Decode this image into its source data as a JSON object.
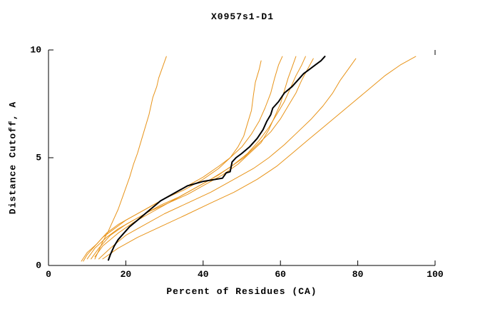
{
  "chart_data": {
    "type": "line",
    "title": "X0957s1-D1",
    "xlabel": "Percent of Residues (CA)",
    "ylabel": "Distance Cutoff, A",
    "xlim": [
      0,
      100
    ],
    "ylim": [
      0,
      10
    ],
    "xticks": [
      0,
      20,
      40,
      60,
      80,
      100
    ],
    "yticks": [
      0,
      5,
      10
    ],
    "grid": false,
    "colors": {
      "model_line": "#E8941A",
      "highlight_line": "#000000",
      "axis": "#000000",
      "background": "#FFFFFF"
    },
    "series": [
      {
        "color": "#E8941A",
        "width": 1,
        "points": [
          [
            12,
            0.3
          ],
          [
            13,
            0.7
          ],
          [
            14,
            1.1
          ],
          [
            15.5,
            1.6
          ],
          [
            16.5,
            2.0
          ],
          [
            18,
            2.6
          ],
          [
            19,
            3.1
          ],
          [
            20,
            3.6
          ],
          [
            21,
            4.1
          ],
          [
            22,
            4.7
          ],
          [
            23,
            5.2
          ],
          [
            24,
            5.8
          ],
          [
            25,
            6.4
          ],
          [
            26,
            7.0
          ],
          [
            26.5,
            7.4
          ],
          [
            27,
            7.8
          ],
          [
            28,
            8.3
          ],
          [
            28.5,
            8.7
          ],
          [
            29.5,
            9.2
          ],
          [
            30.5,
            9.7
          ]
        ]
      },
      {
        "color": "#E8941A",
        "width": 1,
        "points": [
          [
            9,
            0.2
          ],
          [
            10,
            0.5
          ],
          [
            12,
            0.9
          ],
          [
            14,
            1.3
          ],
          [
            17,
            1.7
          ],
          [
            20,
            2.1
          ],
          [
            24,
            2.5
          ],
          [
            28,
            2.9
          ],
          [
            32,
            3.3
          ],
          [
            36,
            3.7
          ],
          [
            40,
            4.1
          ],
          [
            44,
            4.6
          ],
          [
            47,
            5.0
          ],
          [
            49,
            5.5
          ],
          [
            50.5,
            6.0
          ],
          [
            51.5,
            6.6
          ],
          [
            52.5,
            7.2
          ],
          [
            53,
            7.9
          ],
          [
            53.5,
            8.5
          ],
          [
            54.5,
            9.1
          ],
          [
            55,
            9.5
          ]
        ]
      },
      {
        "color": "#E8941A",
        "width": 1,
        "points": [
          [
            10,
            0.3
          ],
          [
            12,
            0.8
          ],
          [
            15,
            1.3
          ],
          [
            18,
            1.7
          ],
          [
            22,
            2.1
          ],
          [
            26,
            2.5
          ],
          [
            31,
            2.9
          ],
          [
            36,
            3.3
          ],
          [
            41,
            3.8
          ],
          [
            45,
            4.2
          ],
          [
            49,
            4.7
          ],
          [
            52,
            5.2
          ],
          [
            55,
            5.7
          ],
          [
            57,
            6.3
          ],
          [
            58.5,
            6.9
          ],
          [
            60,
            7.5
          ],
          [
            61,
            8.1
          ],
          [
            62,
            8.7
          ],
          [
            63,
            9.2
          ],
          [
            64,
            9.7
          ]
        ]
      },
      {
        "color": "#E8941A",
        "width": 1,
        "points": [
          [
            11,
            0.3
          ],
          [
            13,
            0.8
          ],
          [
            16,
            1.4
          ],
          [
            20,
            1.9
          ],
          [
            24,
            2.3
          ],
          [
            29,
            2.8
          ],
          [
            34,
            3.2
          ],
          [
            39,
            3.7
          ],
          [
            44,
            4.2
          ],
          [
            48,
            4.7
          ],
          [
            51.5,
            5.2
          ],
          [
            54.5,
            5.8
          ],
          [
            57,
            6.4
          ],
          [
            59,
            7.0
          ],
          [
            61,
            7.6
          ],
          [
            62.5,
            8.2
          ],
          [
            64,
            8.8
          ],
          [
            65.5,
            9.3
          ],
          [
            66.5,
            9.7
          ]
        ]
      },
      {
        "color": "#E8941A",
        "width": 1,
        "points": [
          [
            12,
            0.4
          ],
          [
            14,
            0.9
          ],
          [
            18,
            1.5
          ],
          [
            22,
            2.0
          ],
          [
            27,
            2.5
          ],
          [
            32,
            3.0
          ],
          [
            37,
            3.5
          ],
          [
            42,
            4.0
          ],
          [
            46.5,
            4.5
          ],
          [
            50.5,
            5.0
          ],
          [
            54,
            5.6
          ],
          [
            57.5,
            6.2
          ],
          [
            60,
            6.8
          ],
          [
            62,
            7.4
          ],
          [
            64,
            8.0
          ],
          [
            65.5,
            8.6
          ],
          [
            67,
            9.1
          ],
          [
            68.5,
            9.6
          ]
        ]
      },
      {
        "color": "#E8941A",
        "width": 1,
        "points": [
          [
            8.5,
            0.2
          ],
          [
            10,
            0.6
          ],
          [
            12.5,
            1.0
          ],
          [
            15,
            1.5
          ],
          [
            18,
            1.9
          ],
          [
            22,
            2.3
          ],
          [
            26,
            2.7
          ],
          [
            30,
            3.1
          ],
          [
            35,
            3.5
          ],
          [
            40,
            4.0
          ],
          [
            44,
            4.5
          ],
          [
            47,
            5.0
          ],
          [
            50,
            5.5
          ],
          [
            52.5,
            6.1
          ],
          [
            54.5,
            6.7
          ],
          [
            56,
            7.3
          ],
          [
            57.5,
            8.0
          ],
          [
            58.5,
            8.7
          ],
          [
            59.5,
            9.3
          ],
          [
            60.5,
            9.7
          ]
        ]
      },
      {
        "color": "#E8941A",
        "width": 1,
        "points": [
          [
            13,
            0.3
          ],
          [
            16,
            0.8
          ],
          [
            20,
            1.4
          ],
          [
            25,
            1.9
          ],
          [
            30,
            2.4
          ],
          [
            36,
            2.9
          ],
          [
            42,
            3.4
          ],
          [
            48,
            4.0
          ],
          [
            53,
            4.5
          ],
          [
            57,
            5.0
          ],
          [
            61,
            5.6
          ],
          [
            64.5,
            6.2
          ],
          [
            68,
            6.8
          ],
          [
            71,
            7.4
          ],
          [
            73.5,
            8.0
          ],
          [
            75.5,
            8.6
          ],
          [
            77.5,
            9.1
          ],
          [
            79.5,
            9.6
          ]
        ]
      },
      {
        "color": "#E8941A",
        "width": 1,
        "points": [
          [
            14,
            0.3
          ],
          [
            18,
            0.8
          ],
          [
            23,
            1.3
          ],
          [
            29,
            1.8
          ],
          [
            35,
            2.3
          ],
          [
            42,
            2.9
          ],
          [
            48,
            3.4
          ],
          [
            54,
            4.0
          ],
          [
            59,
            4.6
          ],
          [
            63,
            5.2
          ],
          [
            67,
            5.8
          ],
          [
            71,
            6.4
          ],
          [
            75,
            7.0
          ],
          [
            79,
            7.6
          ],
          [
            83,
            8.2
          ],
          [
            87,
            8.8
          ],
          [
            91,
            9.3
          ],
          [
            95,
            9.7
          ]
        ]
      },
      {
        "color": "#000000",
        "width": 2,
        "points": [
          [
            15.5,
            0.25
          ],
          [
            16,
            0.5
          ],
          [
            17,
            0.9
          ],
          [
            18,
            1.2
          ],
          [
            19.5,
            1.5
          ],
          [
            21,
            1.8
          ],
          [
            23,
            2.1
          ],
          [
            25,
            2.4
          ],
          [
            27,
            2.7
          ],
          [
            29,
            3.0
          ],
          [
            31,
            3.2
          ],
          [
            34,
            3.5
          ],
          [
            36,
            3.7
          ],
          [
            40,
            3.9
          ],
          [
            45,
            4.05
          ],
          [
            46,
            4.3
          ],
          [
            47,
            4.35
          ],
          [
            47.5,
            4.8
          ],
          [
            48.5,
            5.0
          ],
          [
            50,
            5.2
          ],
          [
            52,
            5.5
          ],
          [
            54,
            5.9
          ],
          [
            55.5,
            6.3
          ],
          [
            56.5,
            6.7
          ],
          [
            57.5,
            7.0
          ],
          [
            58,
            7.3
          ],
          [
            59.5,
            7.6
          ],
          [
            61,
            8.0
          ],
          [
            63,
            8.3
          ],
          [
            64.5,
            8.6
          ],
          [
            66,
            8.9
          ],
          [
            67.5,
            9.1
          ],
          [
            69,
            9.3
          ],
          [
            70.5,
            9.5
          ],
          [
            71.5,
            9.7
          ]
        ]
      }
    ]
  }
}
